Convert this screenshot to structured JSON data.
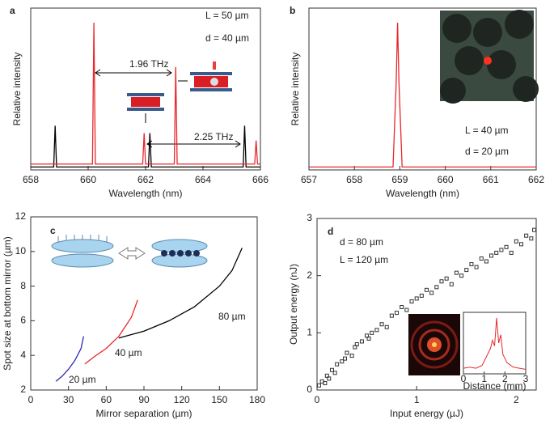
{
  "chart_data": [
    {
      "type": "line",
      "panel_label": "a",
      "xlabel": "Wavelength (nm)",
      "ylabel": "Relative intensity",
      "xlim": [
        658,
        666
      ],
      "ylim": [
        0,
        1.1
      ],
      "xticks": [
        658,
        660,
        662,
        664,
        666
      ],
      "annotations": [
        "L = 50 µm",
        "d = 40 µm",
        "1.96 THz",
        "2.25 THz"
      ],
      "series": [
        {
          "color": "#000000",
          "x": [
            658,
            658.8,
            658.85,
            658.9,
            662.1,
            662.15,
            662.2,
            665.4,
            665.45,
            665.5,
            666
          ],
          "values": [
            0.02,
            0.02,
            0.3,
            0.02,
            0.02,
            0.25,
            0.02,
            0.02,
            0.3,
            0.02,
            0.02
          ]
        },
        {
          "color": "#e8282b",
          "x": [
            658,
            660.15,
            660.2,
            660.25,
            661.9,
            661.95,
            662.0,
            663.0,
            663.05,
            663.1,
            665.8,
            665.85,
            665.9,
            666
          ],
          "values": [
            0.04,
            0.04,
            1.0,
            0.04,
            0.04,
            0.25,
            0.04,
            0.04,
            0.7,
            0.04,
            0.04,
            0.2,
            0.04,
            0.04
          ]
        }
      ]
    },
    {
      "type": "line",
      "panel_label": "b",
      "xlabel": "Wavelength (nm)",
      "ylabel": "Relative intensity",
      "xlim": [
        657,
        662
      ],
      "ylim": [
        0,
        1.1
      ],
      "xticks": [
        657,
        658,
        659,
        660,
        661,
        662
      ],
      "annotations": [
        "L = 40 µm",
        "d = 20 µm"
      ],
      "series": [
        {
          "color": "#e8282b",
          "x": [
            657,
            658.85,
            658.92,
            658.95,
            658.98,
            659.05,
            662
          ],
          "values": [
            0.02,
            0.02,
            0.6,
            1.0,
            0.6,
            0.02,
            0.02
          ]
        }
      ]
    },
    {
      "type": "line",
      "panel_label": "c",
      "xlabel": "Mirror separation (µm)",
      "ylabel": "Spot size at bottom mirror (µm)",
      "xlim": [
        0,
        180
      ],
      "ylim": [
        2,
        12
      ],
      "xticks": [
        0,
        30,
        60,
        90,
        120,
        150,
        180
      ],
      "yticks": [
        2,
        4,
        6,
        8,
        10,
        12
      ],
      "annotations": [
        "20 µm",
        "40 µm",
        "80 µm"
      ],
      "series": [
        {
          "color": "#2b2bb0",
          "x": [
            20,
            25,
            30,
            35,
            40,
            42
          ],
          "values": [
            2.5,
            2.8,
            3.2,
            3.7,
            4.4,
            5.1
          ]
        },
        {
          "color": "#e8282b",
          "x": [
            43,
            50,
            60,
            70,
            80,
            85
          ],
          "values": [
            3.5,
            3.9,
            4.4,
            5.1,
            6.2,
            7.2
          ]
        },
        {
          "color": "#000000",
          "x": [
            70,
            90,
            110,
            130,
            150,
            160,
            168
          ],
          "values": [
            5.0,
            5.4,
            6.0,
            6.8,
            8.0,
            8.9,
            10.2
          ]
        }
      ]
    },
    {
      "type": "scatter",
      "panel_label": "d",
      "xlabel": "Input energy (µJ)",
      "ylabel": "Output energy (nJ)",
      "xlim": [
        0,
        2.2
      ],
      "ylim": [
        0,
        3
      ],
      "xticks": [
        0,
        1,
        2
      ],
      "yticks": [
        0,
        1,
        2,
        3
      ],
      "annotations": [
        "d = 80 µm",
        "L = 120 µm"
      ],
      "series": [
        {
          "color": "#333333",
          "x": [
            0.02,
            0.05,
            0.08,
            0.1,
            0.12,
            0.15,
            0.18,
            0.2,
            0.25,
            0.28,
            0.3,
            0.35,
            0.38,
            0.4,
            0.45,
            0.5,
            0.52,
            0.55,
            0.6,
            0.65,
            0.7,
            0.75,
            0.8,
            0.85,
            0.9,
            0.95,
            1.0,
            1.05,
            1.1,
            1.15,
            1.2,
            1.25,
            1.3,
            1.35,
            1.4,
            1.45,
            1.5,
            1.55,
            1.6,
            1.65,
            1.7,
            1.75,
            1.8,
            1.85,
            1.9,
            1.95,
            2.0,
            2.05,
            2.1,
            2.15,
            2.18
          ],
          "values": [
            0.08,
            0.15,
            0.12,
            0.25,
            0.2,
            0.35,
            0.3,
            0.45,
            0.5,
            0.55,
            0.65,
            0.6,
            0.75,
            0.8,
            0.85,
            0.95,
            0.9,
            1.0,
            1.05,
            1.15,
            1.1,
            1.3,
            1.35,
            1.45,
            1.4,
            1.55,
            1.6,
            1.65,
            1.75,
            1.7,
            1.8,
            1.9,
            1.95,
            1.85,
            2.05,
            2.0,
            2.1,
            2.2,
            2.15,
            2.3,
            2.25,
            2.35,
            2.4,
            2.45,
            2.5,
            2.4,
            2.6,
            2.55,
            2.7,
            2.65,
            2.8
          ]
        }
      ],
      "inset": {
        "xlabel": "Distance (mm)",
        "xlim": [
          0,
          3
        ],
        "ylim": [
          0,
          1.1
        ],
        "xticks": [
          0,
          1,
          2,
          3
        ],
        "color": "#e8282b",
        "x": [
          0,
          0.3,
          0.6,
          0.9,
          1.1,
          1.3,
          1.4,
          1.5,
          1.6,
          1.7,
          1.8,
          1.9,
          2.1,
          2.4,
          2.7,
          3
        ],
        "values": [
          0.1,
          0.12,
          0.1,
          0.15,
          0.3,
          0.45,
          0.6,
          0.5,
          1.0,
          0.55,
          0.7,
          0.35,
          0.2,
          0.12,
          0.1,
          0.08
        ]
      }
    }
  ]
}
